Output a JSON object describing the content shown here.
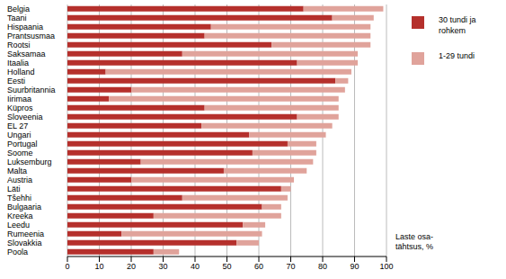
{
  "chart_data": {
    "type": "bar",
    "orientation": "horizontal",
    "stacked": true,
    "grid": true,
    "legend": "right",
    "x_label": "Laste osa-tähtsus, %",
    "categories": [
      "Belgia",
      "Taani",
      "Hispaania",
      "Prantsusmaa",
      "Rootsi",
      "Saksamaa",
      "Itaalia",
      "Holland",
      "Eesti",
      "Suurbritannia",
      "Iirimaa",
      "Küpros",
      "Sloveenia",
      "EL 27",
      "Ungari",
      "Portugal",
      "Soome",
      "Luksemburg",
      "Malta",
      "Austria",
      "Läti",
      "Tšehhi",
      "Bulgaaria",
      "Kreeka",
      "Leedu",
      "Rumeenia",
      "Slovakkia",
      "Poola"
    ],
    "series": [
      {
        "name": "30 tundi ja rohkem",
        "color": "#b5302c",
        "values": [
          74,
          83,
          45,
          43,
          64,
          36,
          72,
          12,
          84,
          20,
          13,
          43,
          72,
          42,
          57,
          69,
          58,
          23,
          49,
          20,
          67,
          36,
          61,
          27,
          55,
          17,
          53,
          27
        ]
      },
      {
        "name": "1-29 tundi",
        "color": "#e0a39b",
        "values": [
          25,
          13,
          50,
          52,
          31,
          55,
          19,
          77,
          4,
          67,
          72,
          42,
          13,
          41,
          24,
          9,
          20,
          54,
          26,
          51,
          3,
          33,
          6,
          40,
          7,
          44,
          7,
          8
        ]
      }
    ],
    "xlim": [
      0,
      100
    ],
    "xticks": [
      0,
      10,
      20,
      30,
      40,
      50,
      60,
      70,
      80,
      90,
      100
    ]
  }
}
